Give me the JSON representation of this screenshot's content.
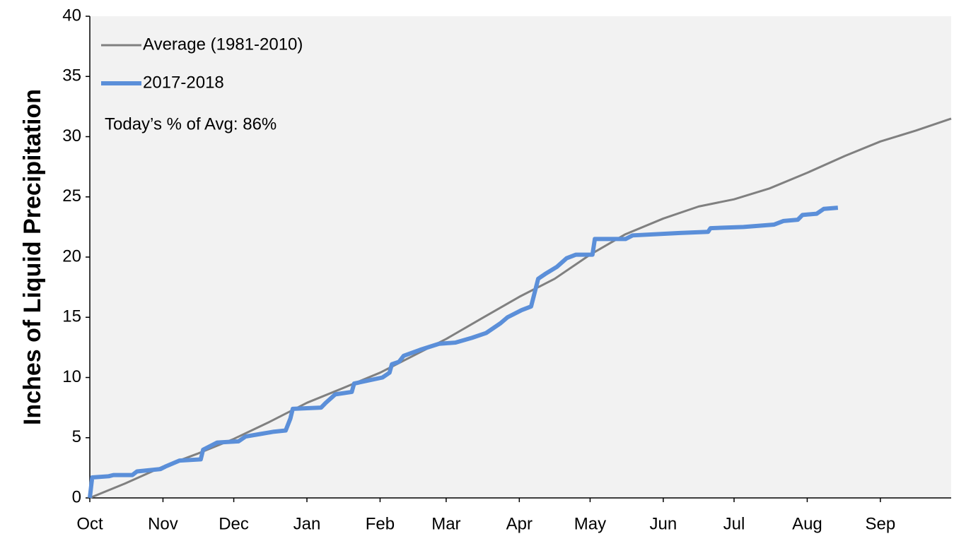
{
  "chart_data": {
    "type": "line",
    "ylabel": "Inches of Liquid Precipitation",
    "annotation": "Today’s % of Avg: 86%",
    "legend": "upper left",
    "grid": false,
    "xlim": [
      0,
      365
    ],
    "xticks": [
      {
        "value": 0,
        "label": "Oct"
      },
      {
        "value": 31,
        "label": "Nov"
      },
      {
        "value": 61,
        "label": "Dec"
      },
      {
        "value": 92,
        "label": "Jan"
      },
      {
        "value": 123,
        "label": "Feb"
      },
      {
        "value": 151,
        "label": "Mar"
      },
      {
        "value": 182,
        "label": "Apr"
      },
      {
        "value": 212,
        "label": "May"
      },
      {
        "value": 243,
        "label": "Jun"
      },
      {
        "value": 273,
        "label": "Jul"
      },
      {
        "value": 304,
        "label": "Aug"
      },
      {
        "value": 335,
        "label": "Sep"
      }
    ],
    "ylim": [
      0,
      40
    ],
    "yticks": [
      0,
      5,
      10,
      15,
      20,
      25,
      30,
      35,
      40
    ],
    "series": [
      {
        "name": "Average (1981-2010)",
        "color": "#808080",
        "width": 3,
        "x": [
          0,
          15,
          31,
          46,
          61,
          76,
          92,
          107,
          123,
          137,
          151,
          166,
          182,
          197,
          212,
          227,
          243,
          258,
          273,
          288,
          304,
          320,
          335,
          350,
          365
        ],
        "values": [
          0,
          1.2,
          2.6,
          3.7,
          4.9,
          6.3,
          7.9,
          9.1,
          10.4,
          11.8,
          13.2,
          14.9,
          16.7,
          18.2,
          20.2,
          21.9,
          23.2,
          24.2,
          24.8,
          25.7,
          27.0,
          28.4,
          29.6,
          30.5,
          31.5
        ]
      },
      {
        "name": "2017-2018",
        "color": "#5b8fd9",
        "width": 6,
        "x": [
          0,
          1,
          8,
          10,
          18,
          20,
          30,
          32,
          38,
          47,
          48,
          54,
          63,
          66,
          72,
          78,
          83,
          85,
          86,
          98,
          100,
          104,
          111,
          112,
          124,
          127,
          128,
          131,
          133,
          140,
          148,
          155,
          162,
          168,
          174,
          177,
          183,
          187,
          190,
          193,
          198,
          202,
          206,
          213,
          214,
          227,
          230,
          250,
          262,
          263,
          277,
          290,
          294,
          300,
          302,
          308,
          311,
          317
        ],
        "values": [
          0,
          1.7,
          1.8,
          1.9,
          1.9,
          2.2,
          2.4,
          2.6,
          3.1,
          3.2,
          4.0,
          4.6,
          4.7,
          5.1,
          5.3,
          5.5,
          5.6,
          6.6,
          7.4,
          7.5,
          7.9,
          8.6,
          8.8,
          9.5,
          10.0,
          10.4,
          11.1,
          11.3,
          11.8,
          12.3,
          12.8,
          12.9,
          13.3,
          13.7,
          14.5,
          15.0,
          15.6,
          15.9,
          18.2,
          18.6,
          19.2,
          19.9,
          20.2,
          20.2,
          21.5,
          21.5,
          21.8,
          22.0,
          22.1,
          22.4,
          22.5,
          22.7,
          23.0,
          23.1,
          23.5,
          23.6,
          24.0,
          24.1
        ]
      }
    ]
  }
}
